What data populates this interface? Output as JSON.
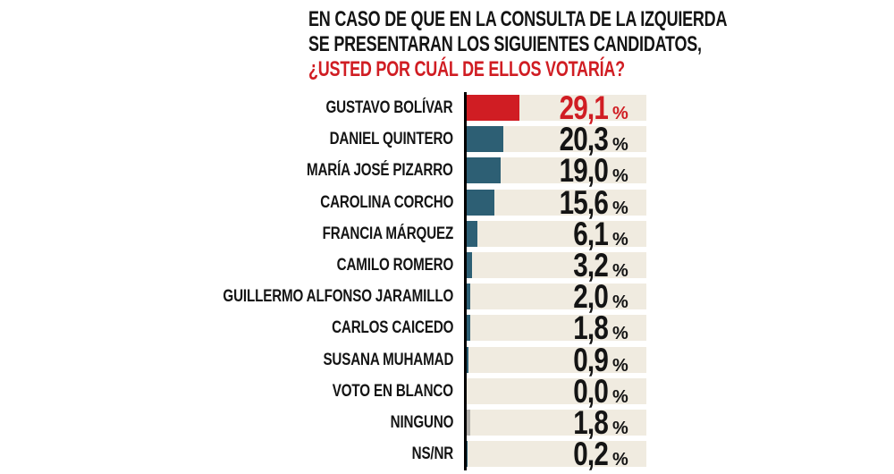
{
  "title": {
    "line1": "EN CASO DE QUE EN LA CONSULTA DE LA IZQUIERDA",
    "line2": "SE PRESENTARAN LOS SIGUIENTES CANDIDATOS,",
    "line3": "¿USTED POR CUÁL DE ELLOS VOTARÍA?"
  },
  "colors": {
    "accent_red": "#d01d23",
    "bar_teal": "#2d5f74",
    "bar_gray": "#b3b0ab",
    "track_cream": "#f0ebe0",
    "text_black": "#141414",
    "axis_black": "#000000"
  },
  "chart_data": {
    "type": "bar",
    "orientation": "horizontal",
    "unit": "%",
    "xlim": [
      0,
      100
    ],
    "grid": false,
    "legend": false,
    "title": "EN CASO DE QUE EN LA CONSULTA DE LA IZQUIERDA SE PRESENTARAN LOS SIGUIENTES CANDIDATOS, ¿USTED POR CUÁL DE ELLOS VOTARÍA?",
    "categories": [
      "GUSTAVO BOLÍVAR",
      "DANIEL QUINTERO",
      "MARÍA JOSÉ PIZARRO",
      "CAROLINA CORCHO",
      "FRANCIA MÁRQUEZ",
      "CAMILO ROMERO",
      "GUILLERMO ALFONSO JARAMILLO",
      "CARLOS CAICEDO",
      "SUSANA MUHAMAD",
      "VOTO EN BLANCO",
      "NINGUNO",
      "NS/NR"
    ],
    "values": [
      29.1,
      20.3,
      19.0,
      15.6,
      6.1,
      3.2,
      2.0,
      1.8,
      0.9,
      0.0,
      1.8,
      0.2
    ],
    "display_values": [
      "29,1",
      "20,3",
      "19,0",
      "15,6",
      "6,1",
      "3,2",
      "2,0",
      "1,8",
      "0,9",
      "0,0",
      "1,8",
      "0,2"
    ],
    "bar_color_keys": [
      "accent_red",
      "bar_teal",
      "bar_teal",
      "bar_teal",
      "bar_teal",
      "bar_teal",
      "bar_teal",
      "bar_teal",
      "bar_teal",
      "bar_teal",
      "bar_gray",
      "bar_teal"
    ],
    "value_color_keys": [
      "accent_red",
      "text_black",
      "text_black",
      "text_black",
      "text_black",
      "text_black",
      "text_black",
      "text_black",
      "text_black",
      "text_black",
      "text_black",
      "text_black"
    ]
  },
  "layout_meta": {
    "note": ""
  }
}
